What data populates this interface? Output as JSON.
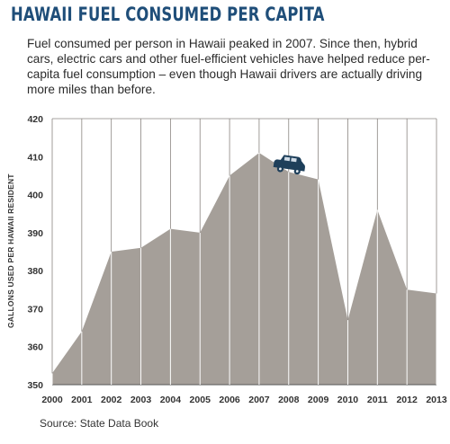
{
  "title": "HAWAII FUEL CONSUMED PER CAPITA",
  "subtitle": "Fuel consumed per person in Hawaii peaked in 2007. Since then, hybrid cars, electric cars and other fuel-efficient vehicles have helped reduce per-capita fuel consumption – even though Hawaii drivers are actually driving more miles than before.",
  "source": "Source: State Data Book",
  "icons": {
    "car": "car-icon"
  },
  "colors": {
    "area": "#a59f99",
    "grid": "#8a8580",
    "title": "#1f4e79",
    "car": "#1e3f5a"
  },
  "chart_data": {
    "type": "area",
    "title": "HAWAII FUEL CONSUMED PER CAPITA",
    "xlabel": "",
    "ylabel": "GALLONS USED PER HAWAII RESIDENT",
    "categories": [
      "2000",
      "2001",
      "2002",
      "2003",
      "2004",
      "2005",
      "2006",
      "2007",
      "2008",
      "2009",
      "2010",
      "2011",
      "2012",
      "2013"
    ],
    "values": [
      353,
      364,
      385,
      386,
      391,
      390,
      405,
      411,
      406,
      404,
      367,
      396,
      375,
      374
    ],
    "yticks": [
      350,
      360,
      370,
      380,
      390,
      400,
      410,
      420
    ],
    "ylim": [
      350,
      420
    ],
    "grid": true
  }
}
